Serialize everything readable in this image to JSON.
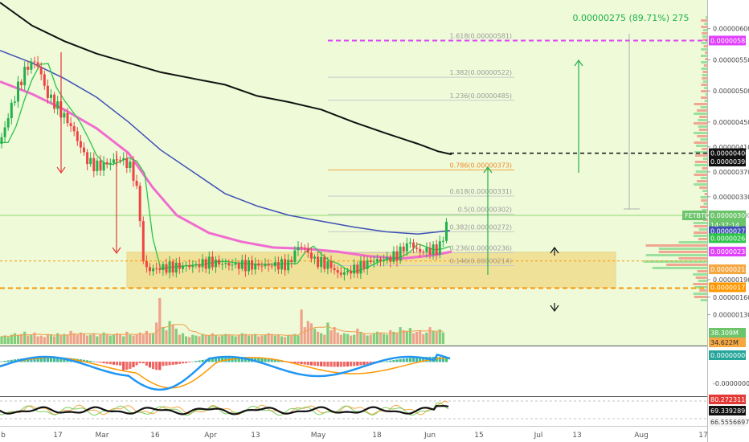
{
  "chart_data": {
    "type": "candlestick",
    "symbol": "FETBTC",
    "price_axis": {
      "ticks": [
        "0.00000600",
        "0.00000550",
        "0.00000500",
        "0.00000450",
        "0.00000410",
        "0.00000370",
        "0.00000330",
        "0.00000300",
        "0.00000190",
        "0.00000160",
        "0.00000130"
      ],
      "tick_values": [
        600,
        550,
        500,
        450,
        410,
        370,
        330,
        300,
        190,
        160,
        130
      ],
      "labels": {
        "fib_1618": "0.00000581",
        "target": "0.00000400",
        "ma200": "0.00000398",
        "symbol_tag": "FETBTC",
        "last_price": "0.00000300",
        "countdown": "14:37:14",
        "ma100": "0.00000273",
        "ma50": "0.00000261",
        "ema": "0.00000238",
        "poc": "0.00000216",
        "support": "0.00000177"
      },
      "label_values": {
        "fib_1618": 581,
        "target": 400,
        "ma200": 398,
        "last_price": 300,
        "ma100": 273,
        "ma50": 261,
        "ema": 238,
        "poc": 216,
        "support": 177
      }
    },
    "time_axis": {
      "ticks": [
        "b",
        "17",
        "Mar",
        "16",
        "Apr",
        "13",
        "May",
        "18",
        "Jun",
        "15",
        "Jul",
        "13",
        "Aug",
        "17"
      ]
    },
    "fibonacci": [
      {
        "label": "1.618(0.00000581)",
        "value": 581
      },
      {
        "label": "1.382(0.00000522)",
        "value": 522
      },
      {
        "label": "1.236(0.00000485)",
        "value": 485
      },
      {
        "label": "0.786(0.00000373)",
        "value": 373
      },
      {
        "label": "0.618(0.00000331)",
        "value": 331
      },
      {
        "label": "0.5(0.00000302)",
        "value": 302
      },
      {
        "label": "0.382(0.00000272)",
        "value": 272
      },
      {
        "label": "0.236(0.00000236)",
        "value": 236
      },
      {
        "label": "0.146(0.00000214)",
        "value": 214
      }
    ],
    "measure_label": "0.00000275 (89.71%) 275",
    "support_zone": {
      "low": 177,
      "high": 237
    },
    "volume": {
      "labels": [
        "38.309M",
        "34.622M"
      ],
      "values": [
        10,
        11,
        9,
        12,
        14,
        12,
        13,
        16,
        11,
        12,
        15,
        10,
        11,
        9,
        13,
        12,
        10,
        14,
        11,
        13,
        12,
        17,
        14,
        12,
        15,
        13,
        11,
        12,
        14,
        10,
        12,
        15,
        13,
        11,
        12,
        14,
        13,
        10,
        16,
        12,
        11,
        13,
        15,
        12,
        17,
        13,
        14,
        28,
        60,
        22,
        18,
        30,
        25,
        20,
        12,
        14,
        10,
        9,
        12,
        11,
        10,
        13,
        12,
        11,
        14,
        12,
        10,
        11,
        13,
        12,
        11,
        10,
        12,
        14,
        13,
        11,
        12,
        13,
        10,
        11,
        12,
        14,
        13,
        11,
        12,
        10,
        9,
        11,
        12,
        13,
        11,
        45,
        22,
        30,
        27,
        20,
        16,
        14,
        12,
        28,
        18,
        22,
        15,
        12,
        14,
        13,
        11,
        12,
        20,
        16,
        13,
        11,
        12,
        14,
        16,
        15,
        13,
        12,
        18,
        16,
        14,
        22,
        18,
        17,
        21,
        14,
        16,
        18,
        13,
        15,
        22,
        17,
        16,
        19,
        15
      ]
    },
    "macd": {
      "label": "0.00000006",
      "zero_label": "-0.00000000"
    },
    "rsi": {
      "labels": [
        "80.27231167",
        "69.33928959",
        "66.55566970"
      ]
    }
  }
}
